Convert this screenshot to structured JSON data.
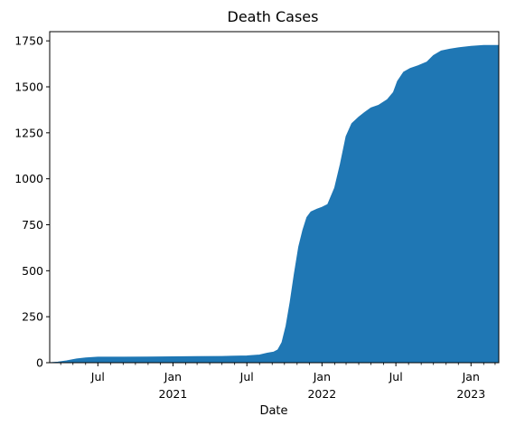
{
  "chart_data": {
    "type": "area",
    "title": "Death Cases",
    "xlabel": "Date",
    "ylabel": "",
    "ylim": [
      0,
      1800
    ],
    "xlim": [
      "2020-03-05",
      "2023-03-10"
    ],
    "color": "#1f77b4",
    "grid": false,
    "legend": "none",
    "y_ticks": [
      0,
      250,
      500,
      750,
      1000,
      1250,
      1500,
      1750
    ],
    "x_major_ticks": [
      {
        "date": "2020-07-01",
        "line1": "Jul",
        "line2": ""
      },
      {
        "date": "2021-01-01",
        "line1": "Jan",
        "line2": "2021"
      },
      {
        "date": "2021-07-01",
        "line1": "Jul",
        "line2": ""
      },
      {
        "date": "2022-01-01",
        "line1": "Jan",
        "line2": "2022"
      },
      {
        "date": "2022-07-01",
        "line1": "Jul",
        "line2": ""
      },
      {
        "date": "2023-01-01",
        "line1": "Jan",
        "line2": "2023"
      }
    ],
    "series": [
      {
        "points": [
          [
            "2020-03-05",
            0
          ],
          [
            "2020-03-25",
            3
          ],
          [
            "2020-04-15",
            10
          ],
          [
            "2020-05-10",
            20
          ],
          [
            "2020-06-01",
            26
          ],
          [
            "2020-07-01",
            30
          ],
          [
            "2020-09-01",
            30
          ],
          [
            "2020-11-01",
            31
          ],
          [
            "2021-01-01",
            32
          ],
          [
            "2021-03-01",
            33
          ],
          [
            "2021-05-01",
            34
          ],
          [
            "2021-07-01",
            37
          ],
          [
            "2021-08-01",
            42
          ],
          [
            "2021-08-20",
            52
          ],
          [
            "2021-09-05",
            58
          ],
          [
            "2021-09-15",
            70
          ],
          [
            "2021-09-25",
            110
          ],
          [
            "2021-10-05",
            200
          ],
          [
            "2021-10-15",
            330
          ],
          [
            "2021-10-25",
            480
          ],
          [
            "2021-11-05",
            630
          ],
          [
            "2021-11-15",
            720
          ],
          [
            "2021-11-25",
            790
          ],
          [
            "2021-12-05",
            820
          ],
          [
            "2021-12-20",
            835
          ],
          [
            "2022-01-01",
            845
          ],
          [
            "2022-01-15",
            860
          ],
          [
            "2022-02-01",
            950
          ],
          [
            "2022-02-15",
            1080
          ],
          [
            "2022-03-01",
            1230
          ],
          [
            "2022-03-15",
            1300
          ],
          [
            "2022-04-01",
            1335
          ],
          [
            "2022-04-15",
            1360
          ],
          [
            "2022-05-01",
            1385
          ],
          [
            "2022-05-20",
            1400
          ],
          [
            "2022-06-10",
            1430
          ],
          [
            "2022-06-25",
            1470
          ],
          [
            "2022-07-05",
            1530
          ],
          [
            "2022-07-20",
            1580
          ],
          [
            "2022-08-05",
            1600
          ],
          [
            "2022-08-25",
            1615
          ],
          [
            "2022-09-15",
            1635
          ],
          [
            "2022-10-01",
            1670
          ],
          [
            "2022-10-20",
            1695
          ],
          [
            "2022-11-10",
            1705
          ],
          [
            "2022-12-01",
            1712
          ],
          [
            "2023-01-01",
            1720
          ],
          [
            "2023-02-01",
            1725
          ],
          [
            "2023-03-10",
            1725
          ]
        ]
      }
    ]
  }
}
